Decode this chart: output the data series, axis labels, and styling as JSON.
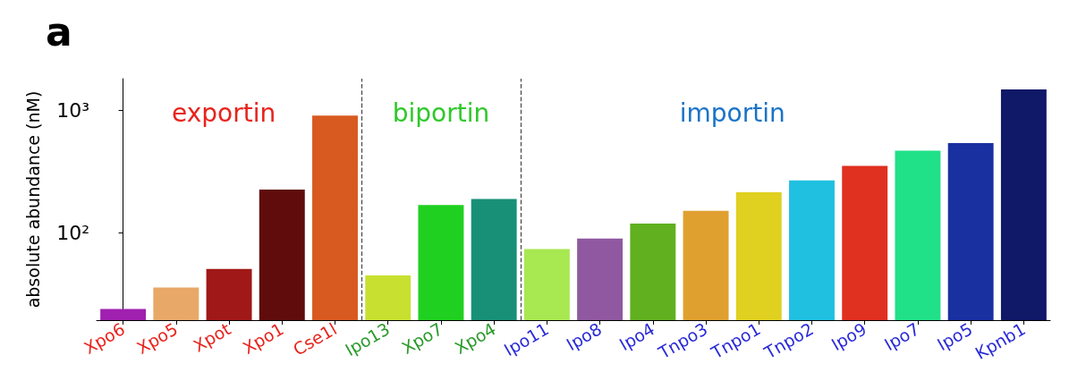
{
  "chart_data": {
    "type": "bar",
    "title": "a",
    "ylabel": "absolute abundance (nM)",
    "categories": [
      "Xpo6",
      "Xpo5",
      "Xpot",
      "Xpo1",
      "Cse1l",
      "Ipo13",
      "Xpo7",
      "Xpo4",
      "Ipo11",
      "Ipo8",
      "Ipo4",
      "Tnpo3",
      "Tnpo1",
      "Tnpo2",
      "Ipo9",
      "Ipo7",
      "Ipo5",
      "Kpnb1"
    ],
    "values": [
      24,
      36,
      51,
      225,
      900,
      45,
      169,
      189,
      74,
      90,
      119,
      151,
      214,
      268,
      351,
      467,
      538,
      1470
    ],
    "colors": [
      "#a020b0",
      "#e8a868",
      "#a01818",
      "#600c0c",
      "#d85a20",
      "#c8e030",
      "#20d020",
      "#189078",
      "#a8e850",
      "#9058a0",
      "#60b020",
      "#e0a030",
      "#e0d020",
      "#20c0e0",
      "#e03020",
      "#20e088",
      "#1830a0",
      "#101868"
    ],
    "log": "y",
    "ylim": [
      19.5,
      1800
    ],
    "yticks": [
      {
        "value": 100,
        "label": "10²"
      },
      {
        "value": 1000,
        "label": "10³"
      }
    ],
    "annotations": [
      "exportin",
      "biportin",
      "importin"
    ],
    "grid": false
  }
}
